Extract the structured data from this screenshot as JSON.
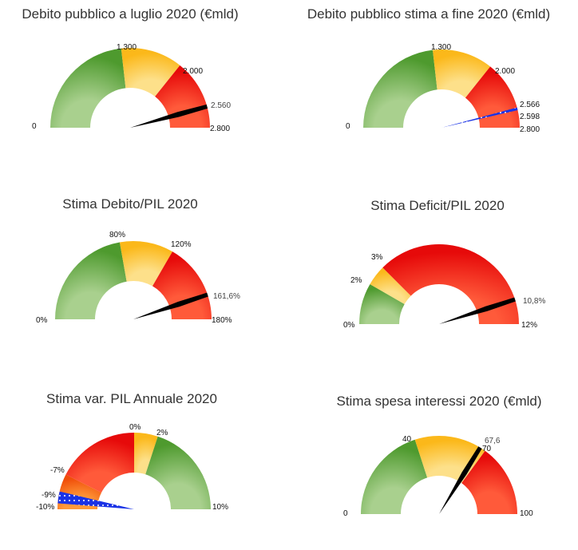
{
  "colors": {
    "green": "#6aa84f",
    "yellow": "#fcc42a",
    "red": "#f21410",
    "orange": "#f56a12",
    "blue": "#1a33e6",
    "needle": "#000000"
  },
  "chart_data": [
    {
      "type": "gauge",
      "title": "Debito pubblico a luglio 2020 (€mld)",
      "range": [
        0,
        2800
      ],
      "ticks": [
        "0",
        "1.300",
        "2.000",
        "2.800"
      ],
      "tick_values": [
        0,
        1300,
        2000,
        2800
      ],
      "bands": [
        {
          "from": 0,
          "to": 1300,
          "color": "green"
        },
        {
          "from": 1300,
          "to": 2000,
          "color": "yellow"
        },
        {
          "from": 2000,
          "to": 2800,
          "color": "red"
        }
      ],
      "value": 2560,
      "value_label": "2.560"
    },
    {
      "type": "gauge",
      "title": "Debito pubblico stima a fine 2020 (€mld)",
      "range": [
        0,
        2800
      ],
      "ticks": [
        "0",
        "1.300",
        "2.000",
        "2.800"
      ],
      "tick_values": [
        0,
        1300,
        2000,
        2800
      ],
      "bands": [
        {
          "from": 0,
          "to": 1300,
          "color": "green"
        },
        {
          "from": 1300,
          "to": 2000,
          "color": "yellow"
        },
        {
          "from": 2000,
          "to": 2800,
          "color": "red"
        }
      ],
      "range_band": {
        "from": 2566,
        "to": 2598,
        "color": "blue"
      },
      "range_labels": [
        "2.566",
        "2.598"
      ]
    },
    {
      "type": "gauge",
      "title": "Stima Debito/PIL 2020",
      "range": [
        0,
        180
      ],
      "ticks": [
        "0%",
        "80%",
        "120%",
        "180%"
      ],
      "tick_values": [
        0,
        80,
        120,
        180
      ],
      "bands": [
        {
          "from": 0,
          "to": 80,
          "color": "green"
        },
        {
          "from": 80,
          "to": 120,
          "color": "yellow"
        },
        {
          "from": 120,
          "to": 180,
          "color": "red"
        }
      ],
      "value": 161.6,
      "value_label": "161,6%"
    },
    {
      "type": "gauge",
      "title": "Stima Deficit/PIL 2020",
      "range": [
        0,
        12
      ],
      "ticks": [
        "0%",
        "2%",
        "3%",
        "12%"
      ],
      "tick_values": [
        0,
        2,
        3,
        12
      ],
      "bands": [
        {
          "from": 0,
          "to": 2,
          "color": "green"
        },
        {
          "from": 2,
          "to": 3,
          "color": "yellow"
        },
        {
          "from": 3,
          "to": 12,
          "color": "red"
        }
      ],
      "value": 10.8,
      "value_label": "10,8%"
    },
    {
      "type": "gauge",
      "title": "Stima var. PIL Annuale 2020",
      "range": [
        -10,
        10
      ],
      "ticks": [
        "-10%",
        "-7%",
        "0%",
        "2%",
        "10%"
      ],
      "tick_values": [
        -10,
        -7,
        0,
        2,
        10
      ],
      "bands": [
        {
          "from": -10,
          "to": -7,
          "color": "orange"
        },
        {
          "from": -7,
          "to": 0,
          "color": "red"
        },
        {
          "from": 0,
          "to": 2,
          "color": "yellow"
        },
        {
          "from": 2,
          "to": 10,
          "color": "green"
        }
      ],
      "range_band": {
        "from": -9.5,
        "to": -8.5,
        "color": "blue"
      },
      "range_labels": [
        "-9%"
      ]
    },
    {
      "type": "gauge",
      "title": "Stima spesa interessi 2020 (€mld)",
      "range": [
        0,
        100
      ],
      "ticks": [
        "0",
        "40",
        "70",
        "100"
      ],
      "tick_values": [
        0,
        40,
        70,
        100
      ],
      "bands": [
        {
          "from": 0,
          "to": 40,
          "color": "green"
        },
        {
          "from": 40,
          "to": 70,
          "color": "yellow"
        },
        {
          "from": 70,
          "to": 100,
          "color": "red"
        }
      ],
      "value": 67.6,
      "value_label": "67,6"
    }
  ]
}
